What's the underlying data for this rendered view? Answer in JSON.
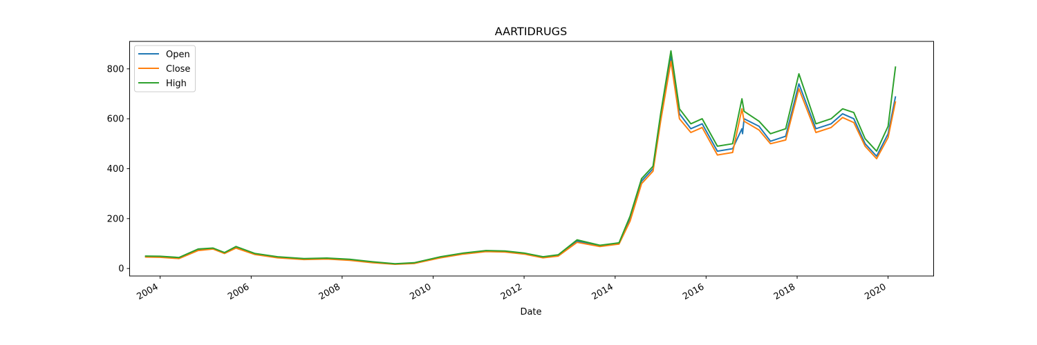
{
  "chart_data": {
    "type": "line",
    "title": "AARTIDRUGS",
    "xlabel": "Date",
    "ylabel": "",
    "xlim": [
      "2003-05-01",
      "2021-01-01"
    ],
    "ylim": [
      -30,
      910
    ],
    "xticks": [
      "2004",
      "2006",
      "2008",
      "2010",
      "2012",
      "2014",
      "2016",
      "2018",
      "2020"
    ],
    "yticks": [
      0,
      200,
      400,
      600,
      800
    ],
    "grid": false,
    "legend_position": "top-left",
    "colors": {
      "Open": "#1f77b4",
      "Close": "#ff7f0e",
      "High": "#2ca02c"
    },
    "series": [
      {
        "name": "Open",
        "x": [
          "2003-09-01",
          "2004-01-01",
          "2004-06-01",
          "2004-11-01",
          "2005-03-01",
          "2005-06-01",
          "2005-09-01",
          "2006-02-01",
          "2006-08-01",
          "2007-03-01",
          "2007-09-01",
          "2008-03-01",
          "2008-09-01",
          "2009-03-01",
          "2009-08-01",
          "2010-03-01",
          "2010-09-01",
          "2011-03-01",
          "2011-08-01",
          "2012-01-01",
          "2012-06-01",
          "2012-10-01",
          "2013-03-01",
          "2013-09-01",
          "2014-02-01",
          "2014-05-01",
          "2014-08-01",
          "2014-11-01",
          "2015-01-01",
          "2015-03-25",
          "2015-06-01",
          "2015-09-01",
          "2015-12-01",
          "2016-04-01",
          "2016-08-01",
          "2016-10-15",
          "2016-10-20",
          "2016-11-01",
          "2017-03-01",
          "2017-06-01",
          "2017-10-01",
          "2018-01-15",
          "2018-06-01",
          "2018-10-01",
          "2019-01-01",
          "2019-04-01",
          "2019-07-01",
          "2019-10-01",
          "2020-01-01",
          "2020-03-01"
        ],
        "y": [
          48,
          47,
          42,
          75,
          80,
          62,
          85,
          58,
          45,
          38,
          40,
          35,
          25,
          18,
          22,
          45,
          60,
          70,
          68,
          60,
          45,
          52,
          110,
          90,
          100,
          200,
          350,
          400,
          600,
          850,
          620,
          560,
          580,
          470,
          480,
          560,
          540,
          600,
          570,
          510,
          530,
          740,
          560,
          580,
          620,
          600,
          500,
          450,
          540,
          690
        ]
      },
      {
        "name": "Close",
        "x": [
          "2003-09-01",
          "2004-01-01",
          "2004-06-01",
          "2004-11-01",
          "2005-03-01",
          "2005-06-01",
          "2005-09-01",
          "2006-02-01",
          "2006-08-01",
          "2007-03-01",
          "2007-09-01",
          "2008-03-01",
          "2008-09-01",
          "2009-03-01",
          "2009-08-01",
          "2010-03-01",
          "2010-09-01",
          "2011-03-01",
          "2011-08-01",
          "2012-01-01",
          "2012-06-01",
          "2012-10-01",
          "2013-03-01",
          "2013-09-01",
          "2014-02-01",
          "2014-05-01",
          "2014-08-01",
          "2014-11-01",
          "2015-01-01",
          "2015-03-25",
          "2015-06-01",
          "2015-09-01",
          "2015-12-01",
          "2016-04-01",
          "2016-08-01",
          "2016-10-15",
          "2016-11-01",
          "2017-03-01",
          "2017-06-01",
          "2017-10-01",
          "2018-01-15",
          "2018-06-01",
          "2018-10-01",
          "2019-01-01",
          "2019-04-01",
          "2019-07-01",
          "2019-10-01",
          "2020-01-01",
          "2020-03-01"
        ],
        "y": [
          46,
          45,
          40,
          72,
          78,
          60,
          82,
          56,
          43,
          36,
          38,
          33,
          23,
          17,
          20,
          43,
          58,
          68,
          66,
          58,
          43,
          50,
          105,
          88,
          98,
          190,
          340,
          390,
          590,
          830,
          600,
          545,
          565,
          455,
          465,
          640,
          590,
          555,
          500,
          515,
          720,
          545,
          565,
          605,
          585,
          490,
          440,
          525,
          670
        ]
      },
      {
        "name": "High",
        "x": [
          "2003-09-01",
          "2004-01-01",
          "2004-06-01",
          "2004-11-01",
          "2005-03-01",
          "2005-06-01",
          "2005-09-01",
          "2006-02-01",
          "2006-08-01",
          "2007-03-01",
          "2007-09-01",
          "2008-03-01",
          "2008-09-01",
          "2009-03-01",
          "2009-08-01",
          "2010-03-01",
          "2010-09-01",
          "2011-03-01",
          "2011-08-01",
          "2012-01-01",
          "2012-06-01",
          "2012-10-01",
          "2013-03-01",
          "2013-09-01",
          "2014-02-01",
          "2014-05-01",
          "2014-08-01",
          "2014-11-01",
          "2015-01-01",
          "2015-03-25",
          "2015-06-01",
          "2015-09-01",
          "2015-12-01",
          "2016-04-01",
          "2016-08-01",
          "2016-10-15",
          "2016-11-01",
          "2017-03-01",
          "2017-06-01",
          "2017-10-01",
          "2018-01-15",
          "2018-06-01",
          "2018-10-01",
          "2019-01-01",
          "2019-04-01",
          "2019-07-01",
          "2019-10-01",
          "2020-01-01",
          "2020-03-01"
        ],
        "y": [
          50,
          49,
          44,
          78,
          82,
          64,
          88,
          60,
          47,
          40,
          42,
          37,
          27,
          19,
          23,
          47,
          62,
          72,
          70,
          62,
          47,
          55,
          115,
          93,
          103,
          210,
          360,
          410,
          620,
          872,
          640,
          580,
          600,
          490,
          500,
          680,
          630,
          590,
          540,
          560,
          780,
          580,
          600,
          640,
          625,
          520,
          470,
          570,
          810
        ]
      }
    ]
  }
}
